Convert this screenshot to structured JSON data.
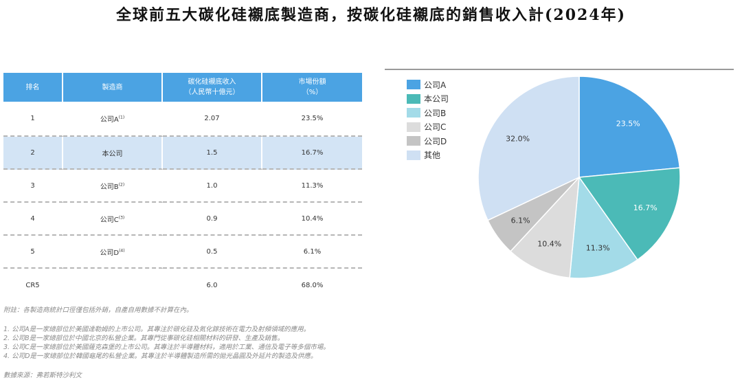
{
  "title": "全球前五大碳化硅襯底製造商，按碳化硅襯底的銷售收入計(2024年)",
  "table": {
    "headers": [
      "排名",
      "製造商",
      "碳化硅襯底收入\n（人民幣十億元）",
      "市場份額\n（%）"
    ],
    "rows": [
      {
        "rank": "1",
        "maker": "公司A",
        "note": "(1)",
        "revenue": "2.07",
        "share": "23.5%"
      },
      {
        "rank": "2",
        "maker": "本公司",
        "note": "",
        "revenue": "1.5",
        "share": "16.7%"
      },
      {
        "rank": "3",
        "maker": "公司B",
        "note": "(2)",
        "revenue": "1.0",
        "share": "11.3%"
      },
      {
        "rank": "4",
        "maker": "公司C",
        "note": "(3)",
        "revenue": "0.9",
        "share": "10.4%"
      },
      {
        "rank": "5",
        "maker": "公司D",
        "note": "(4)",
        "revenue": "0.5",
        "share": "6.1%"
      },
      {
        "rank": "CR5",
        "maker": "",
        "note": "",
        "revenue": "6.0",
        "share": "68.0%"
      }
    ]
  },
  "notes": {
    "remark": "附註：各製造商統計口徑僅包括外銷，自產自用數據不計算在內。",
    "items": [
      "1.    公司A是一家總部位於美國達勒姆的上市公司。其專注於碳化硅及氮化鎵技術在電力及射頻領域的應用。",
      "2.    公司B是一家總部位於中國北京的私營企業。其專門從事碳化硅相關材料的研發、生產及銷售。",
      "3.    公司C是一家總部位於美國薩克森堡的上市公司。其專注於半導體材料，適用於工業、通信及電子等多個市場。",
      "4.    公司D是一家總部位於韓國龜尾的私營企業。其專注於半導體製造所需的拋光晶圓及外延片的製造及供應。"
    ],
    "source": "數據來源：弗若斯特沙利文"
  },
  "chart_data": {
    "type": "pie",
    "title": "",
    "legend_position": "left",
    "labels": [
      "公司A",
      "本公司",
      "公司B",
      "公司C",
      "公司D",
      "其他"
    ],
    "values": [
      23.5,
      16.7,
      11.3,
      10.4,
      6.1,
      32.0
    ],
    "value_labels": [
      "23.5%",
      "16.7%",
      "11.3%",
      "10.4%",
      "6.1%",
      "32.0%"
    ],
    "colors": [
      "#4ba3e3",
      "#4bbab7",
      "#a3dbe8",
      "#dcdcdc",
      "#c4c4c4",
      "#cfe0f3"
    ],
    "label_colors": [
      "#ffffff",
      "#ffffff",
      "#333333",
      "#333333",
      "#333333",
      "#333333"
    ]
  }
}
